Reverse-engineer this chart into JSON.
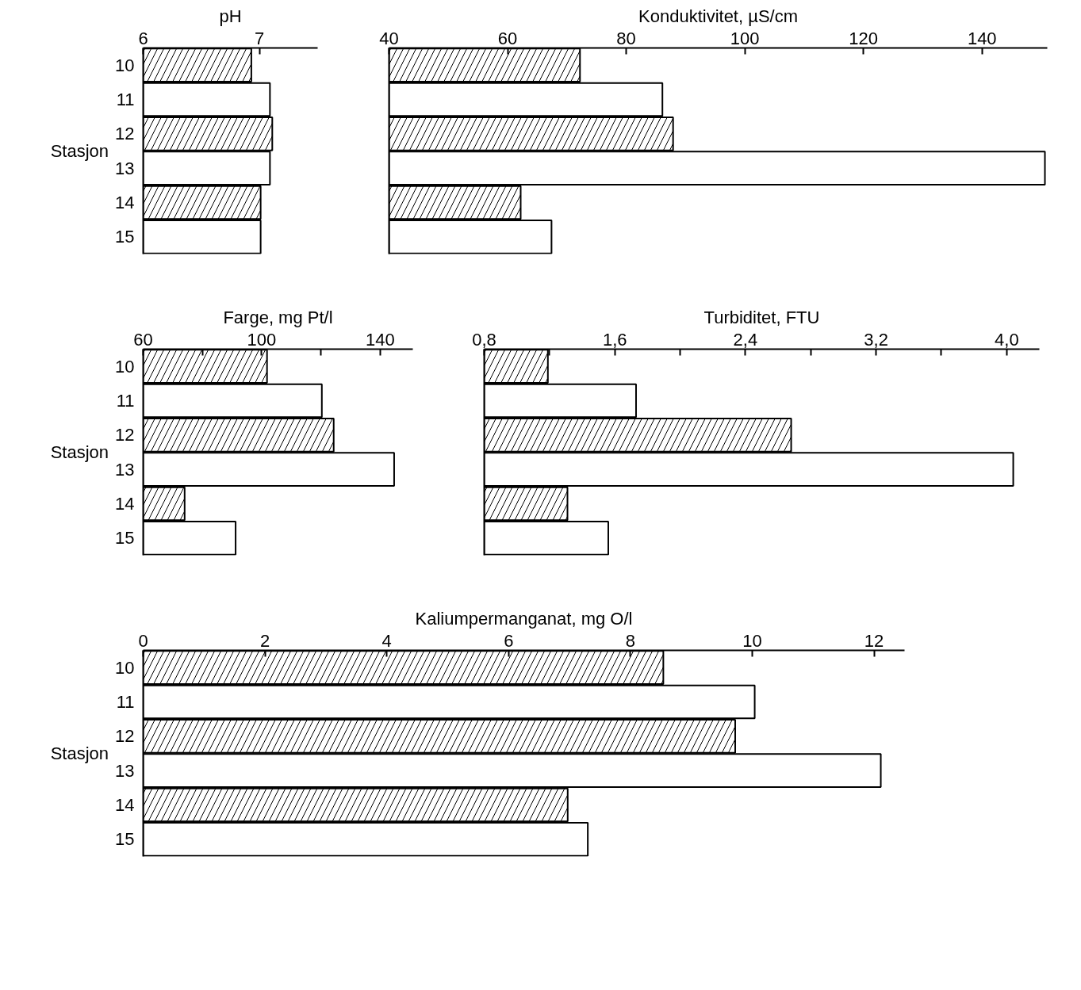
{
  "chart_data": [
    {
      "type": "bar",
      "orientation": "horizontal",
      "title": "pH",
      "ylabel": "Stasjon",
      "categories": [
        "10",
        "11",
        "12",
        "13",
        "14",
        "15"
      ],
      "values": [
        6.93,
        7.09,
        7.11,
        7.09,
        7.01,
        7.01
      ],
      "colors": [
        "#ffffff",
        "#ffffff",
        "#ffffff",
        "#ffffff",
        "#ffffff",
        "#ffffff"
      ],
      "xlim": [
        6,
        7.5
      ],
      "xticks": [
        6,
        7
      ],
      "grid": false
    },
    {
      "type": "bar",
      "orientation": "horizontal",
      "title": "Konduktivitet, µS/cm",
      "categories": [
        "10",
        "11",
        "12",
        "13",
        "14",
        "15"
      ],
      "values": [
        72.2,
        86.1,
        87.9,
        150.6,
        62.2,
        67.4
      ],
      "colors": [
        "#ffffff",
        "#ffffff",
        "#ffffff",
        "#ffffff",
        "#ffffff",
        "#ffffff"
      ],
      "xlim": [
        40,
        151
      ],
      "xticks": [
        40,
        60,
        80,
        100,
        120,
        140
      ],
      "tick_labels": "x",
      "grid": false
    },
    {
      "type": "bar",
      "orientation": "horizontal",
      "title": "Farge, mg Pt/l",
      "ylabel": "Stasjon",
      "categories": [
        "10",
        "11",
        "12",
        "13",
        "14",
        "15"
      ],
      "values": [
        101.8,
        120.3,
        124.3,
        144.7,
        74,
        91.2
      ],
      "colors": [
        "#ffffff",
        "#ffffff",
        "#ffffff",
        "#ffffff",
        "#ffffff",
        "#ffffff"
      ],
      "xlim": [
        60,
        151
      ],
      "xticks": [
        60,
        {
          "value": 80,
          "label": null
        },
        100,
        {
          "value": 120,
          "label": null
        },
        140
      ],
      "grid": false
    },
    {
      "type": "bar",
      "orientation": "horizontal",
      "title": "Turbiditet, FTU",
      "categories": [
        "10",
        "11",
        "12",
        "13",
        "14",
        "15"
      ],
      "values": [
        1.19,
        1.73,
        2.68,
        4.04,
        1.31,
        1.56
      ],
      "colors": [
        "#ffffff",
        "#ffffff",
        "#ffffff",
        "#ffffff",
        "#ffffff",
        "#ffffff"
      ],
      "xlim": [
        0.8,
        4.2
      ],
      "xticks": [
        {
          "value": 0.8,
          "label": "0,8"
        },
        {
          "value": 1.2,
          "label": null
        },
        {
          "value": 1.6,
          "label": "1,6"
        },
        {
          "value": 2.0,
          "label": null
        },
        {
          "value": 2.4,
          "label": "2,4"
        },
        {
          "value": 2.8,
          "label": null
        },
        {
          "value": 3.2,
          "label": "3,2"
        },
        {
          "value": 3.6,
          "label": null
        },
        {
          "value": 4.0,
          "label": "4,0"
        }
      ],
      "tick_labels": "x",
      "grid": false
    },
    {
      "type": "bar",
      "orientation": "horizontal",
      "title": "Kaliumpermanganat, mg O/l",
      "ylabel": "Stasjon",
      "categories": [
        "10",
        "11",
        "12",
        "13",
        "14",
        "15"
      ],
      "values": [
        8.54,
        10.04,
        9.72,
        12.11,
        6.97,
        7.3
      ],
      "colors": [
        "#ffffff",
        "#ffffff",
        "#ffffff",
        "#ffffff",
        "#ffffff",
        "#ffffff"
      ],
      "xlim": [
        0,
        12.5
      ],
      "xticks": [
        0,
        2,
        4,
        6,
        8,
        10,
        12
      ],
      "grid": false
    }
  ]
}
